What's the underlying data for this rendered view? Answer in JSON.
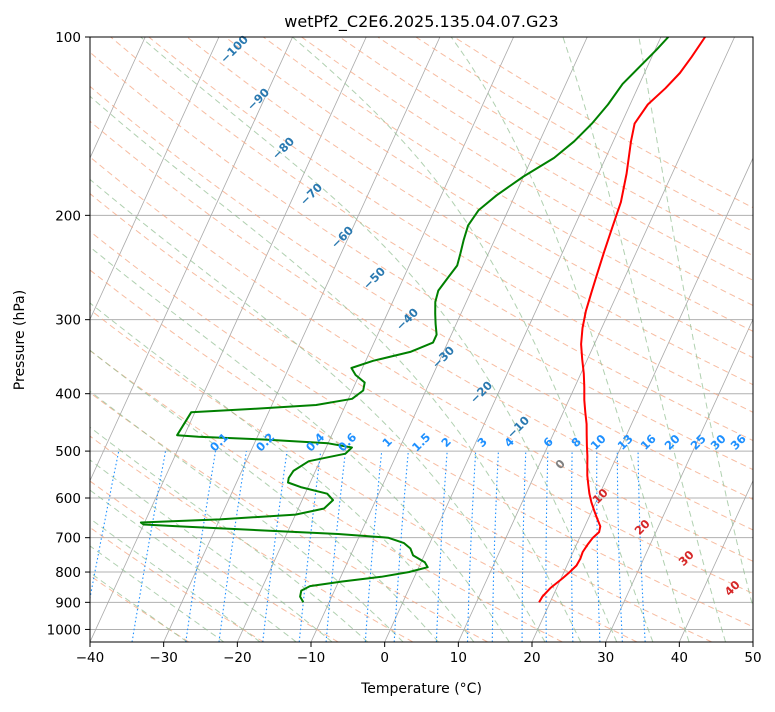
{
  "chart_data": {
    "type": "skew-t",
    "title": "wetPf2_C2E6.2025.135.04.07.G23",
    "xlabel": "Temperature (°C)",
    "ylabel": "Pressure (hPa)",
    "xlim": [
      -40,
      50
    ],
    "ylim": [
      1050,
      100
    ],
    "y_scale": "log",
    "grid": true,
    "x_ticks": [
      "−40",
      "−30",
      "−20",
      "−10",
      "0",
      "10",
      "20",
      "30",
      "40",
      "50"
    ],
    "y_ticks": [
      "100",
      "200",
      "300",
      "400",
      "500",
      "600",
      "700",
      "800",
      "900",
      "1000"
    ],
    "series": [
      {
        "key": "temperature",
        "color": "#ff0000",
        "points": [
          [
            900,
            18.5
          ],
          [
            880,
            18.6
          ],
          [
            850,
            19.2
          ],
          [
            820,
            20.2
          ],
          [
            800,
            20.8
          ],
          [
            780,
            21.3
          ],
          [
            760,
            21.4
          ],
          [
            740,
            21.3
          ],
          [
            720,
            21.5
          ],
          [
            700,
            21.8
          ],
          [
            685,
            22.3
          ],
          [
            670,
            22.1
          ],
          [
            650,
            21.2
          ],
          [
            630,
            20.3
          ],
          [
            610,
            19.4
          ],
          [
            590,
            18.6
          ],
          [
            570,
            17.9
          ],
          [
            550,
            17.2
          ],
          [
            530,
            16.6
          ],
          [
            510,
            16.0
          ],
          [
            490,
            15.3
          ],
          [
            470,
            14.6
          ],
          [
            450,
            13.9
          ],
          [
            430,
            13.0
          ],
          [
            410,
            12.1
          ],
          [
            390,
            11.3
          ],
          [
            370,
            10.4
          ],
          [
            350,
            9.3
          ],
          [
            330,
            8.2
          ],
          [
            310,
            7.4
          ],
          [
            290,
            6.8
          ],
          [
            270,
            6.4
          ],
          [
            250,
            6.0
          ],
          [
            230,
            5.6
          ],
          [
            210,
            5.2
          ],
          [
            190,
            4.8
          ],
          [
            170,
            3.8
          ],
          [
            150,
            2.4
          ],
          [
            140,
            1.8
          ],
          [
            130,
            2.4
          ],
          [
            122,
            3.8
          ],
          [
            115,
            4.8
          ],
          [
            108,
            5.4
          ],
          [
            100,
            6.0
          ]
        ]
      },
      {
        "key": "dewpoint",
        "color": "#008000",
        "points": [
          [
            900,
            -13.5
          ],
          [
            880,
            -14.3
          ],
          [
            860,
            -14.5
          ],
          [
            845,
            -13.6
          ],
          [
            830,
            -9.5
          ],
          [
            815,
            -4.5
          ],
          [
            800,
            -1.0
          ],
          [
            785,
            1.2
          ],
          [
            770,
            0.5
          ],
          [
            750,
            -1.5
          ],
          [
            730,
            -2.3
          ],
          [
            715,
            -3.5
          ],
          [
            700,
            -6.0
          ],
          [
            690,
            -13.0
          ],
          [
            680,
            -24.0
          ],
          [
            670,
            -35.0
          ],
          [
            665,
            -40.0
          ],
          [
            660,
            -40.5
          ],
          [
            652,
            -30.0
          ],
          [
            640,
            -20.0
          ],
          [
            625,
            -16.5
          ],
          [
            605,
            -15.8
          ],
          [
            590,
            -17.0
          ],
          [
            575,
            -21.0
          ],
          [
            565,
            -23.0
          ],
          [
            555,
            -23.2
          ],
          [
            540,
            -23.0
          ],
          [
            520,
            -21.5
          ],
          [
            505,
            -17.0
          ],
          [
            493,
            -16.5
          ],
          [
            485,
            -20.0
          ],
          [
            478,
            -29.0
          ],
          [
            473,
            -38.0
          ],
          [
            470,
            -41.0
          ],
          [
            430,
            -40.5
          ],
          [
            424,
            -32.0
          ],
          [
            418,
            -24.0
          ],
          [
            408,
            -19.5
          ],
          [
            395,
            -18.5
          ],
          [
            383,
            -18.8
          ],
          [
            372,
            -20.5
          ],
          [
            362,
            -21.5
          ],
          [
            352,
            -19.0
          ],
          [
            340,
            -14.5
          ],
          [
            328,
            -12.0
          ],
          [
            318,
            -12.0
          ],
          [
            305,
            -12.8
          ],
          [
            293,
            -13.5
          ],
          [
            280,
            -14.2
          ],
          [
            268,
            -14.5
          ],
          [
            255,
            -14.0
          ],
          [
            243,
            -13.5
          ],
          [
            232,
            -13.8
          ],
          [
            220,
            -14.2
          ],
          [
            208,
            -14.5
          ],
          [
            196,
            -14.0
          ],
          [
            185,
            -12.5
          ],
          [
            172,
            -10.0
          ],
          [
            160,
            -7.0
          ],
          [
            150,
            -5.3
          ],
          [
            140,
            -4.0
          ],
          [
            130,
            -3.0
          ],
          [
            120,
            -2.3
          ],
          [
            112,
            -1.0
          ],
          [
            105,
            0.2
          ],
          [
            100,
            1.0
          ]
        ]
      }
    ],
    "reference_lines": {
      "isotherm_step": 10,
      "dry_adiabat_labels": [
        "−100",
        "−90",
        "−80",
        "−70",
        "−60",
        "−50",
        "−40",
        "−30",
        "−20",
        "−10",
        "0",
        "10",
        "20",
        "30",
        "40"
      ],
      "mixing_ratio_labels": [
        "0.1",
        "0.2",
        "0.4",
        "0.6",
        "1",
        "1.5",
        "2",
        "3",
        "4",
        "6",
        "8",
        "10",
        "13",
        "16",
        "20",
        "25",
        "30",
        "36"
      ],
      "colors": {
        "isotherm": "#a9a9a9",
        "dry_adiabat": "#f4a582",
        "moist_adiabat": "#8fbc8f",
        "mixing_ratio": "#1e90ff",
        "dry_label": "#2a79b0",
        "moist_label": "#d62728",
        "zero_label": "#808080",
        "grid": "#b0b0b0"
      }
    }
  }
}
